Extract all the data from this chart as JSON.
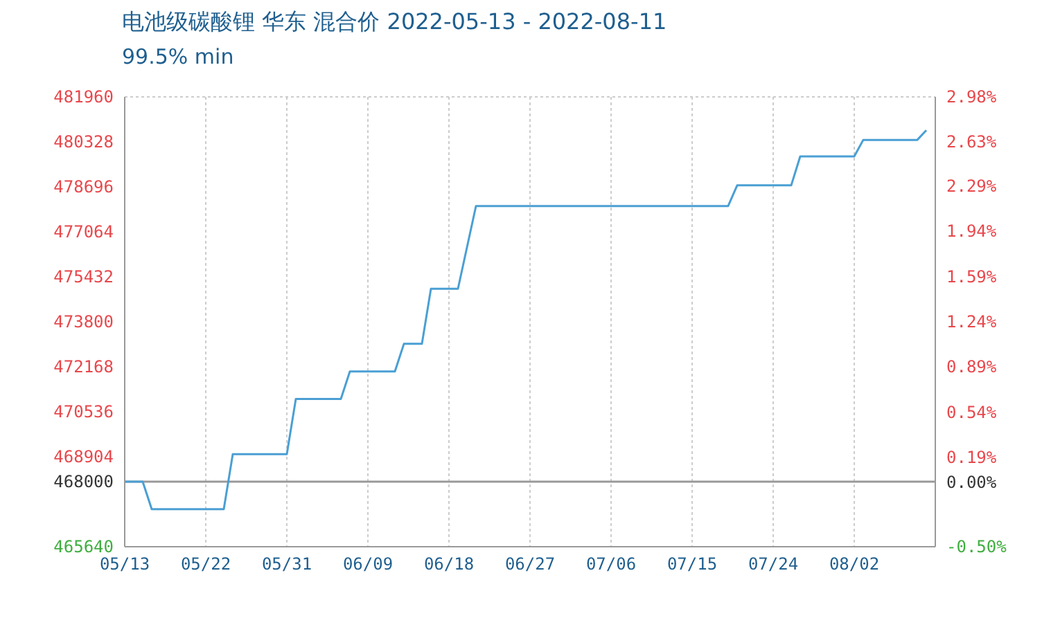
{
  "chart_data": {
    "type": "line",
    "title": "电池级碳酸锂 华东 混合价 2022-05-13 - 2022-08-11",
    "subtitle": "99.5% min",
    "series": [
      {
        "color": "#4a9fd4",
        "x": [
          "2022-05-13",
          "2022-05-15",
          "2022-05-16",
          "2022-05-24",
          "2022-05-25",
          "2022-05-31",
          "2022-06-01",
          "2022-06-06",
          "2022-06-07",
          "2022-06-12",
          "2022-06-13",
          "2022-06-15",
          "2022-06-16",
          "2022-06-19",
          "2022-06-21",
          "2022-07-19",
          "2022-07-20",
          "2022-07-26",
          "2022-07-27",
          "2022-08-02",
          "2022-08-03",
          "2022-08-09",
          "2022-08-10"
        ],
        "values": [
          468000,
          468000,
          467000,
          467000,
          469000,
          469000,
          471000,
          471000,
          472000,
          472000,
          473000,
          473000,
          475000,
          475000,
          478000,
          478000,
          478750,
          478750,
          479800,
          479800,
          480400,
          480400,
          480750
        ]
      }
    ],
    "xlim": [
      "2022-05-13",
      "2022-08-11"
    ],
    "xticks": [
      {
        "value": "2022-05-13",
        "label": "05/13"
      },
      {
        "value": "2022-05-22",
        "label": "05/22"
      },
      {
        "value": "2022-05-31",
        "label": "05/31"
      },
      {
        "value": "2022-06-09",
        "label": "06/09"
      },
      {
        "value": "2022-06-18",
        "label": "06/18"
      },
      {
        "value": "2022-06-27",
        "label": "06/27"
      },
      {
        "value": "2022-07-06",
        "label": "07/06"
      },
      {
        "value": "2022-07-15",
        "label": "07/15"
      },
      {
        "value": "2022-07-24",
        "label": "07/24"
      },
      {
        "value": "2022-08-02",
        "label": "08/02"
      }
    ],
    "ylim": [
      465640,
      481960
    ],
    "yticks": [
      465640,
      468000,
      468904,
      470536,
      472168,
      473800,
      475432,
      477064,
      478696,
      480328,
      481960
    ],
    "y2lim": [
      -0.5,
      2.98
    ],
    "y2ticks": [
      {
        "value": -0.5,
        "label": "-0.50%"
      },
      {
        "value": 0,
        "label": "0.00%"
      },
      {
        "value": 0.19,
        "label": "0.19%"
      },
      {
        "value": 0.54,
        "label": "0.54%"
      },
      {
        "value": 0.89,
        "label": "0.89%"
      },
      {
        "value": 1.24,
        "label": "1.24%"
      },
      {
        "value": 1.59,
        "label": "1.59%"
      },
      {
        "value": 1.94,
        "label": "1.94%"
      },
      {
        "value": 2.29,
        "label": "2.29%"
      },
      {
        "value": 2.63,
        "label": "2.63%"
      },
      {
        "value": 2.98,
        "label": "2.98%"
      }
    ],
    "ref_lines": [
      {
        "axis": "y",
        "value": 468000,
        "color": "#999999"
      }
    ],
    "grid": true,
    "marker": "none",
    "line_style": "solid"
  }
}
